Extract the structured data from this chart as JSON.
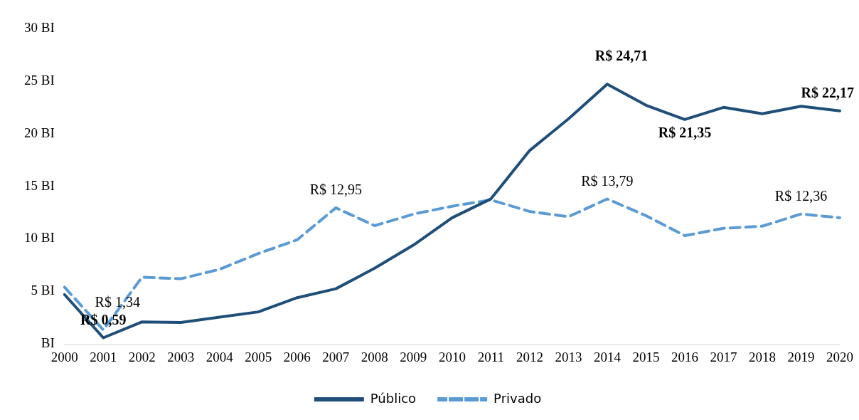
{
  "chart_data": {
    "type": "line",
    "categories": [
      "2000",
      "2001",
      "2002",
      "2003",
      "2004",
      "2005",
      "2006",
      "2007",
      "2008",
      "2009",
      "2010",
      "2011",
      "2012",
      "2013",
      "2014",
      "2015",
      "2016",
      "2017",
      "2018",
      "2019",
      "2020"
    ],
    "series": [
      {
        "name": "Público",
        "color": "#1f4e79",
        "line_style": "solid",
        "values": [
          4.7,
          0.59,
          2.1,
          2.05,
          2.55,
          3.05,
          4.4,
          5.25,
          7.2,
          9.4,
          12.0,
          13.8,
          18.4,
          21.4,
          24.71,
          22.7,
          21.35,
          22.5,
          21.9,
          22.6,
          22.17
        ],
        "value_labels": [
          null,
          "R$ 0,59",
          null,
          null,
          null,
          null,
          null,
          null,
          null,
          null,
          null,
          null,
          null,
          null,
          "R$ 24,71",
          null,
          "R$ 21,35",
          null,
          null,
          null,
          "R$ 22,17"
        ]
      },
      {
        "name": "Privado",
        "color": "#5b9bd5",
        "line_style": "dashed",
        "values": [
          5.4,
          1.34,
          6.35,
          6.2,
          7.1,
          8.6,
          9.9,
          12.95,
          11.25,
          12.35,
          13.1,
          13.7,
          12.6,
          12.1,
          13.79,
          12.2,
          10.3,
          11.0,
          11.2,
          12.36,
          12.0
        ],
        "value_labels": [
          null,
          "R$ 1,34",
          null,
          null,
          null,
          null,
          null,
          "R$ 12,95",
          null,
          null,
          null,
          null,
          null,
          null,
          "R$ 13,79",
          null,
          null,
          null,
          null,
          "R$ 12,36",
          null
        ]
      }
    ],
    "ylim": [
      0,
      30
    ],
    "yticks": [
      {
        "value": 0,
        "label": "BI"
      },
      {
        "value": 5,
        "label": "5 BI"
      },
      {
        "value": 10,
        "label": "10 BI"
      },
      {
        "value": 15,
        "label": "15 BI"
      },
      {
        "value": 20,
        "label": "20 BI"
      },
      {
        "value": 25,
        "label": "25 BI"
      },
      {
        "value": 30,
        "label": "30 BI"
      }
    ],
    "grid": false,
    "legend": "bottom",
    "marker": "none"
  }
}
